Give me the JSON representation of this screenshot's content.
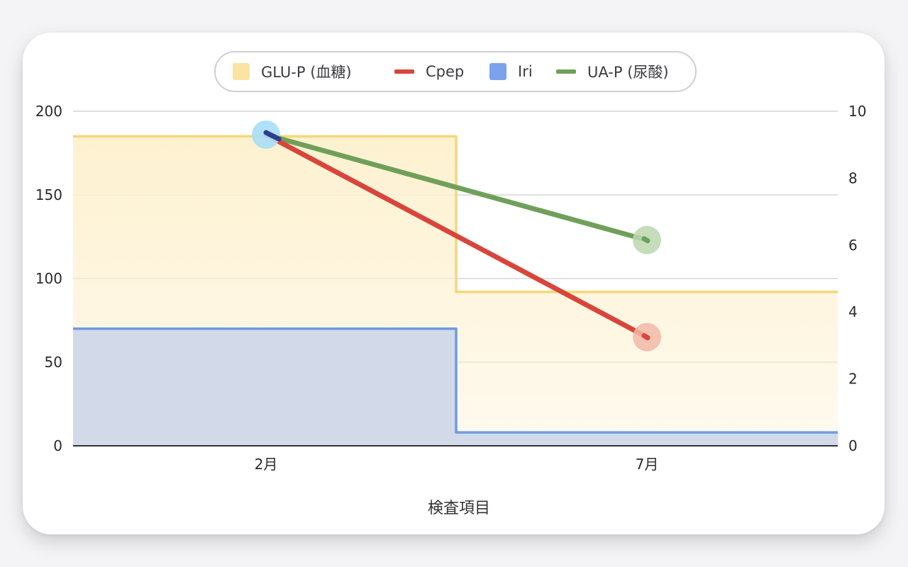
{
  "chart_data": {
    "type": "line",
    "title": "",
    "xlabel": "検査項目",
    "categories": [
      "2月",
      "7月"
    ],
    "left_axis": {
      "ylim": [
        0,
        200
      ],
      "ticks": [
        "0",
        "50",
        "100",
        "150",
        "200"
      ]
    },
    "right_axis": {
      "ylim": [
        0,
        10
      ],
      "ticks": [
        "0",
        "2",
        "4",
        "6",
        "8",
        "10"
      ]
    },
    "grid": true,
    "legend_position": "top-center",
    "series": [
      {
        "name": "GLU-P (血糖)",
        "style": "stepped-area",
        "axis": "left",
        "values": [
          185,
          92
        ],
        "color": "#f5d77a",
        "fill": "#fdf1d0"
      },
      {
        "name": "Cpep",
        "style": "line",
        "axis": "right",
        "values": [
          9.3,
          3.25
        ],
        "color": "#d9453a",
        "marker_color": "#f1b8a8"
      },
      {
        "name": "Iri",
        "style": "stepped-area",
        "axis": "left",
        "values": [
          70,
          8
        ],
        "color": "#6f9ae6",
        "fill": "#d2d9e8"
      },
      {
        "name": "UA-P (尿酸)",
        "style": "line",
        "axis": "right",
        "values": [
          9.3,
          6.15
        ],
        "color": "#6fa05a",
        "marker_color": "#bcd7b0"
      }
    ],
    "highlight_point": {
      "category": "2月",
      "color": "#a9def7"
    }
  }
}
